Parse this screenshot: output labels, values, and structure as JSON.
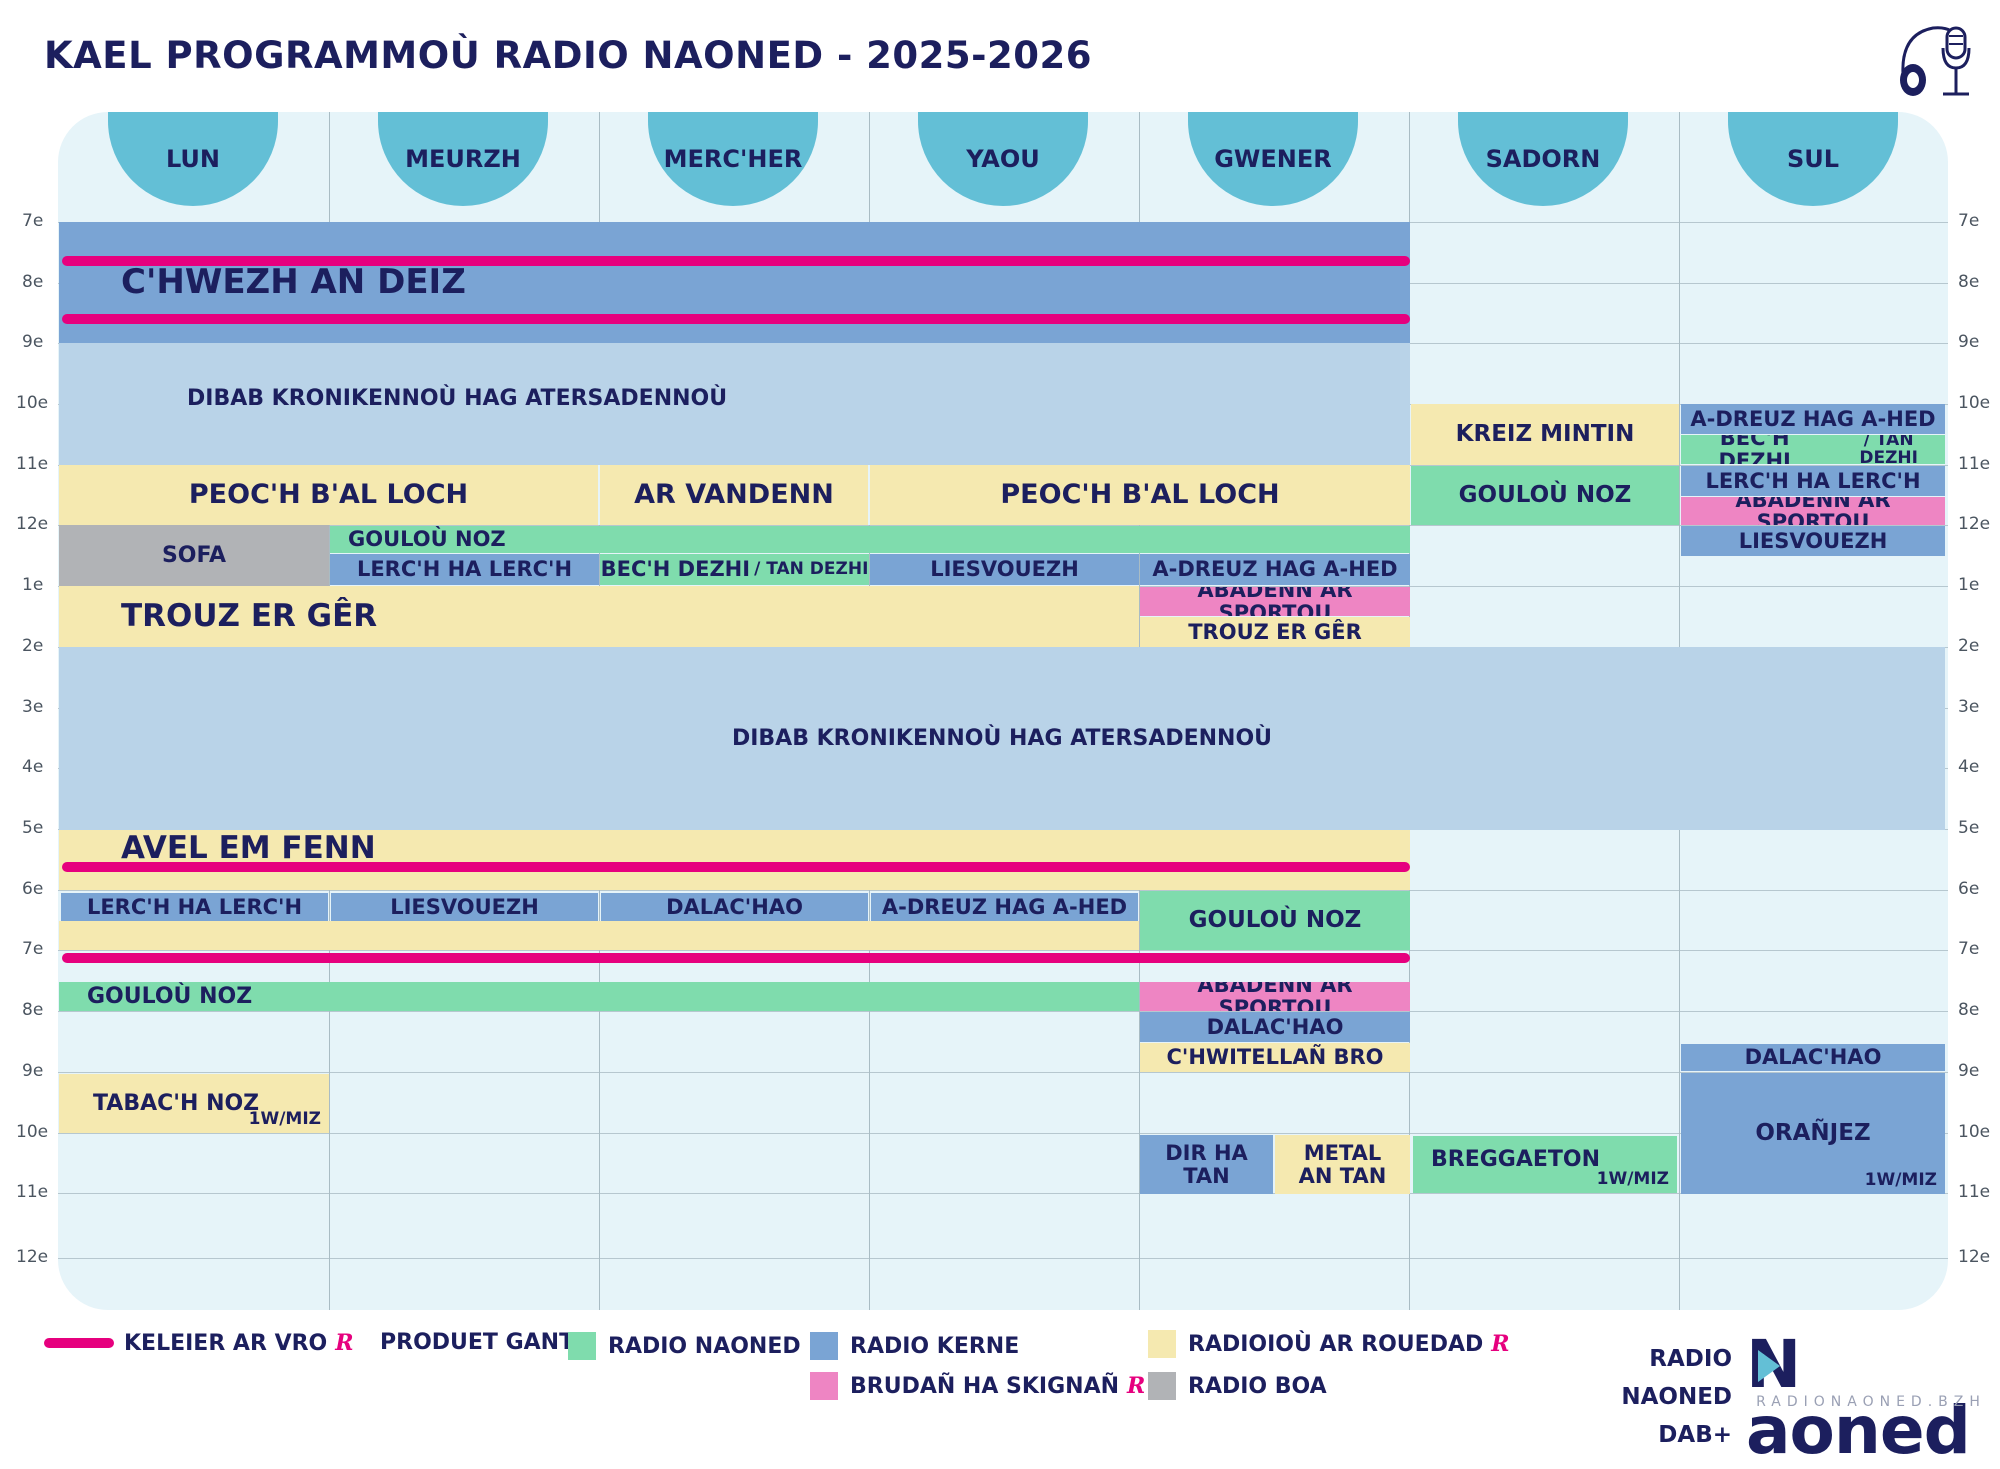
{
  "title": "KAEL PROGRAMMOÙ RADIO NAONED - 2025-2026",
  "days": [
    "LUN",
    "MEURZH",
    "MERC'HER",
    "YAOU",
    "GWENER",
    "SADORN",
    "SUL"
  ],
  "hours": [
    "7e",
    "8e",
    "9e",
    "10e",
    "11e",
    "12e",
    "1e",
    "2e",
    "3e",
    "4e",
    "5e",
    "6e",
    "7e",
    "8e",
    "9e",
    "10e",
    "11e",
    "12e"
  ],
  "programs": {
    "chwezh": "C'HWEZH AN DEIZ",
    "dibab1": "DIBAB KRONIKENNOÙ HAG ATERSADENNOÙ",
    "kreiz": "KREIZ MINTIN",
    "sul_adreuz": "A-DREUZ HAG A-HED",
    "sul_bech_a": "BEC'H DEZHI",
    "sul_bech_b": "/ TAN DEZHI",
    "peoch1": "PEOC'H B'AL LOCH",
    "vandenn": "AR VANDENN",
    "peoch2": "PEOC'H B'AL LOCH",
    "sad_gouloù": "GOULOÙ NOZ",
    "sul_lerch": "LERC'H HA LERC'H",
    "sul_abadenn": "ABADENN AR SPORTOU",
    "sofa": "SOFA",
    "gouloù_noon": "GOULOÙ NOZ",
    "sul_liesv": "LIESVOUEZH",
    "lerch_meurzh": "LERC'H HA LERC'H",
    "bech_a": "BEC'H DEZHI",
    "bech_b": "/ TAN DEZHI",
    "liesv_yaou": "LIESVOUEZH",
    "adreuz_gwener": "A-DREUZ HAG A-HED",
    "trouz": "TROUZ ER GÊR",
    "abadenn_gw1": "ABADENN AR SPORTOU",
    "trouz_gw": "TROUZ ER GÊR",
    "dibab2": "DIBAB KRONIKENNOÙ HAG ATERSADENNOÙ",
    "avel": "AVEL EM FENN",
    "e_lerch": "LERC'H HA LERC'H",
    "e_liesv": "LIESVOUEZH",
    "e_dalac": "DALAC'HAO",
    "e_adreuz": "A-DREUZ HAG A-HED",
    "e_gouloù_gw": "GOULOÙ NOZ",
    "gouloù_eve": "GOULOÙ NOZ",
    "abadenn_gw2": "ABADENN AR SPORTOU",
    "dalac_gw": "DALAC'HAO",
    "chwitellan": "C'HWITELLAÑ BRO",
    "dalac_sul": "DALAC'HAO",
    "tabach": "TABAC'H NOZ",
    "tabach_freq": "1W/MIZ",
    "oranjez": "ORAÑJEZ",
    "oranjez_freq": "1W/MIZ",
    "dir_a": "DIR HA",
    "dir_b": "TAN",
    "metal_a": "METAL",
    "metal_b": "AN TAN",
    "breggaeton": "BREGGAETON",
    "breggaeton_freq": "1W/MIZ"
  },
  "legend": {
    "keleier": "KELEIER AR VRO",
    "produet": "PRODUET GANT",
    "naoned": "RADIO NAONED",
    "kerne": "RADIO KERNE",
    "rouedad": "RADIOIOÙ AR ROUEDAD",
    "brudan": "BRUDAÑ HA SKIGNAÑ",
    "boa": "RADIO BOA",
    "r_mark": "R"
  },
  "brand": {
    "line1": "RADIO NAONED",
    "line2": "DAB+",
    "logo_word": "aoned",
    "logo_letter": "N",
    "url": "RADIONAONED.BZH"
  },
  "colors": {
    "kerne_blue": "#7aa4d4",
    "light_blue": "#b9d3e8",
    "rouedad_yellow": "#f5e9b0",
    "naoned_green": "#7fdcad",
    "brudan_pink": "#ee85c3",
    "boa_gray": "#b1b3b6",
    "keleier_magenta": "#e6007e",
    "day_header": "#63bfd6",
    "text_navy": "#1c1f5e"
  }
}
